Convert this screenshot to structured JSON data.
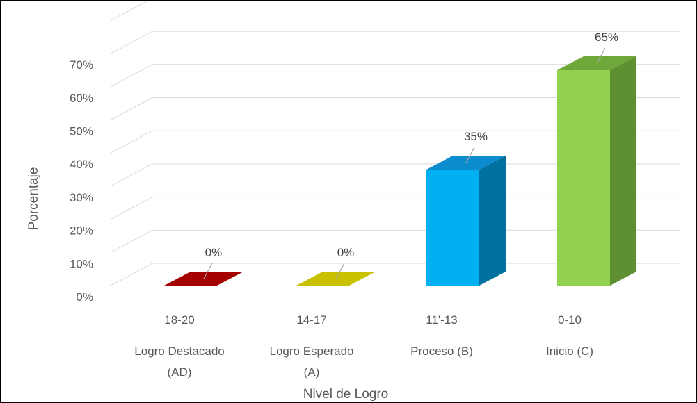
{
  "chart_data": {
    "type": "bar",
    "style": "3d-column",
    "title": "",
    "xlabel": "Nivel de Logro",
    "ylabel": "Porcentaje",
    "ylim": [
      0,
      80
    ],
    "yticks": [
      "0%",
      "10%",
      "20%",
      "30%",
      "40%",
      "50%",
      "60%",
      "70%"
    ],
    "grid": true,
    "legend": "none",
    "categories": [
      {
        "range": "18-20",
        "label_line1": "Logro Destacado",
        "label_line2": "(AD)"
      },
      {
        "range": "14-17",
        "label_line1": "Logro Esperado",
        "label_line2": "(A)"
      },
      {
        "range": "11'-13",
        "label_line1": "Proceso (B)",
        "label_line2": ""
      },
      {
        "range": "0-10",
        "label_line1": "Inicio (C)",
        "label_line2": ""
      }
    ],
    "values": [
      0,
      0,
      35,
      65
    ],
    "data_labels": [
      "0%",
      "0%",
      "35%",
      "65%"
    ],
    "colors": [
      {
        "front": "#9c0006",
        "top": "#a50000",
        "side": "#7a0000"
      },
      {
        "front": "#c9c000",
        "top": "#c9c000",
        "side": "#a39c00"
      },
      {
        "front": "#00b0f0",
        "top": "#0a8ccf",
        "side": "#0070a0"
      },
      {
        "front": "#92d050",
        "top": "#6fa83a",
        "side": "#5e8f31"
      }
    ],
    "gridline_color": "#d9d9d9",
    "leader_color": "#a6a6a6"
  }
}
